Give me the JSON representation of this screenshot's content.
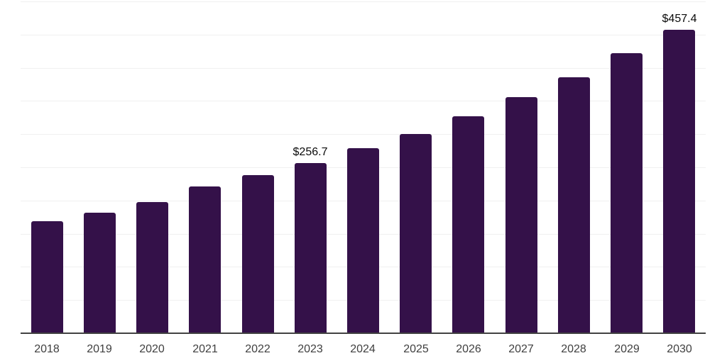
{
  "chart_data": {
    "type": "bar",
    "title": "",
    "xlabel": "",
    "ylabel": "",
    "categories": [
      "2018",
      "2019",
      "2020",
      "2021",
      "2022",
      "2023",
      "2024",
      "2025",
      "2026",
      "2027",
      "2028",
      "2029",
      "2030"
    ],
    "values": [
      169.0,
      181.5,
      197.6,
      221.2,
      238.2,
      256.7,
      278.6,
      300.3,
      326.8,
      355.6,
      385.8,
      422.0,
      457.4
    ],
    "data_labels": [
      {
        "category": "2023",
        "text": "$256.7"
      },
      {
        "category": "2030",
        "text": "$457.4"
      }
    ],
    "ylim": [
      0,
      500
    ],
    "grid": true,
    "gridline_step": 50,
    "y_tick_labels_visible": false,
    "legend": "none",
    "colors": {
      "bar": "#341149",
      "axis_line": "#424242",
      "gridline": "#f0f0f0",
      "value_label_text": "#0b0b0b",
      "tick_label_text": "#3f3f3f",
      "background": "#ffffff"
    }
  }
}
